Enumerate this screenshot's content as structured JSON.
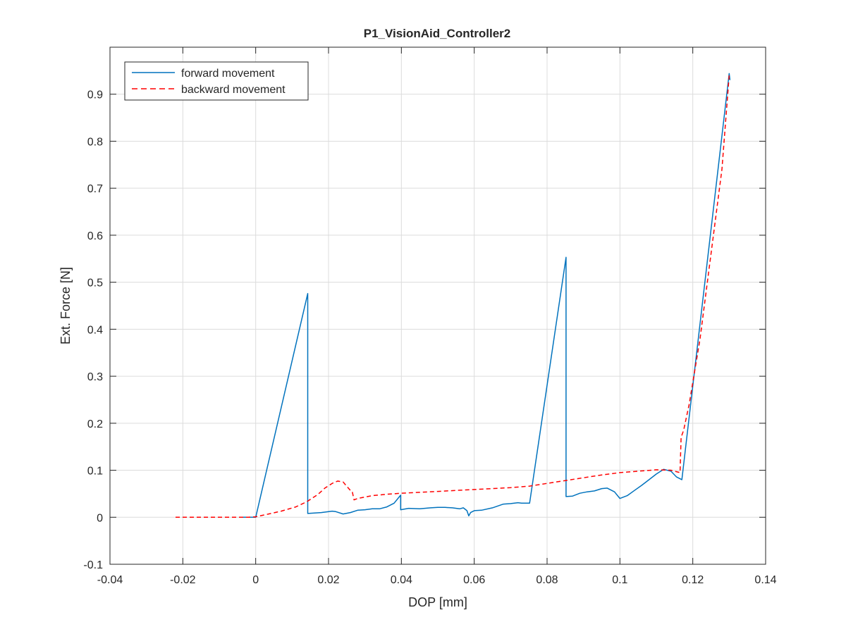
{
  "chart_data": {
    "type": "line",
    "title": "P1_VisionAid_Controller2",
    "xlabel": "DOP [mm]",
    "ylabel": "Ext. Force [N]",
    "xlim": [
      -0.04,
      0.14
    ],
    "ylim": [
      -0.1,
      1.0
    ],
    "xticks": [
      -0.04,
      -0.02,
      0,
      0.02,
      0.04,
      0.06,
      0.08,
      0.1,
      0.12,
      0.14
    ],
    "xtick_labels": [
      "-0.04",
      "-0.02",
      "0",
      "0.02",
      "0.04",
      "0.06",
      "0.08",
      "0.1",
      "0.12",
      "0.14"
    ],
    "yticks": [
      -0.1,
      0,
      0.1,
      0.2,
      0.3,
      0.4,
      0.5,
      0.6,
      0.7,
      0.8,
      0.9
    ],
    "ytick_labels": [
      "-0.1",
      "0",
      "0.1",
      "0.2",
      "0.3",
      "0.4",
      "0.5",
      "0.6",
      "0.7",
      "0.8",
      "0.9"
    ],
    "grid": true,
    "legend": {
      "position": "top-left",
      "entries": [
        "forward movement",
        "backward movement"
      ]
    },
    "series": [
      {
        "name": "forward movement",
        "color": "#0072BD",
        "style": "solid",
        "x": [
          -0.004,
          0,
          0.0143,
          0.0143,
          0.018,
          0.021,
          0.022,
          0.024,
          0.026,
          0.028,
          0.03,
          0.032,
          0.034,
          0.036,
          0.038,
          0.0398,
          0.0398,
          0.042,
          0.045,
          0.048,
          0.05,
          0.052,
          0.054,
          0.056,
          0.057,
          0.058,
          0.0585,
          0.059,
          0.06,
          0.062,
          0.065,
          0.068,
          0.07,
          0.072,
          0.073,
          0.0752,
          0.0852,
          0.0852,
          0.087,
          0.089,
          0.091,
          0.093,
          0.095,
          0.0965,
          0.0985,
          0.1,
          0.102,
          0.104,
          0.106,
          0.108,
          0.11,
          0.112,
          0.114,
          0.1155,
          0.117,
          0.13,
          0.1302
        ],
        "y": [
          0,
          0,
          0.476,
          0.008,
          0.01,
          0.013,
          0.012,
          0.007,
          0.01,
          0.015,
          0.016,
          0.018,
          0.018,
          0.022,
          0.03,
          0.047,
          0.016,
          0.019,
          0.018,
          0.02,
          0.021,
          0.021,
          0.02,
          0.018,
          0.02,
          0.014,
          0.003,
          0.01,
          0.014,
          0.015,
          0.02,
          0.028,
          0.029,
          0.031,
          0.03,
          0.03,
          0.553,
          0.044,
          0.045,
          0.051,
          0.054,
          0.056,
          0.061,
          0.062,
          0.054,
          0.04,
          0.046,
          0.057,
          0.068,
          0.08,
          0.092,
          0.102,
          0.098,
          0.086,
          0.08,
          0.944,
          0.93
        ]
      },
      {
        "name": "backward movement",
        "color": "#FF0000",
        "style": "dashed",
        "x": [
          -0.022,
          -0.01,
          -0.002,
          0,
          0.003,
          0.007,
          0.011,
          0.014,
          0.017,
          0.019,
          0.021,
          0.0225,
          0.024,
          0.025,
          0.026,
          0.0265,
          0.027,
          0.028,
          0.032,
          0.036,
          0.04,
          0.045,
          0.05,
          0.055,
          0.06,
          0.065,
          0.07,
          0.075,
          0.08,
          0.085,
          0.09,
          0.095,
          0.1,
          0.105,
          0.11,
          0.114,
          0.1165,
          0.1168,
          0.1175,
          0.119,
          0.122,
          0.125,
          0.128,
          0.13
        ],
        "y": [
          0,
          0,
          0,
          0.001,
          0.006,
          0.013,
          0.022,
          0.033,
          0.048,
          0.062,
          0.072,
          0.077,
          0.075,
          0.066,
          0.057,
          0.055,
          0.037,
          0.04,
          0.046,
          0.049,
          0.051,
          0.053,
          0.055,
          0.057,
          0.059,
          0.061,
          0.063,
          0.066,
          0.072,
          0.078,
          0.084,
          0.09,
          0.095,
          0.098,
          0.101,
          0.1,
          0.095,
          0.17,
          0.185,
          0.24,
          0.38,
          0.56,
          0.74,
          0.94
        ]
      }
    ]
  }
}
